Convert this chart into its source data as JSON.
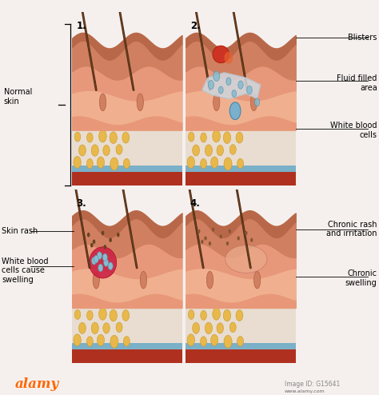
{
  "panel_labels": [
    "1.",
    "2.",
    "3.",
    "4."
  ],
  "bg_color": "#f5f0ee",
  "skin_surface_color": "#c8795a",
  "skin_outer_color": "#d4896e",
  "skin_mid_color": "#e8a080",
  "skin_dermis_color": "#f0b8a0",
  "skin_deep_color": "#e89880",
  "fat_color": "#e8b84b",
  "fat_edge_color": "#c89830",
  "vessel_color": "#cc3322",
  "blue_layer_color": "#7ab0c8",
  "deep_red_color": "#b03020",
  "hair_color": "#6b4020",
  "hair_dark": "#4a2810",
  "blister_red": "#cc2222",
  "blister_orange": "#e87830",
  "fluid_white": "#d0d8e0",
  "bubble_fill": "#88bbcc",
  "bubble_edge": "#5590aa",
  "wbc_fill": "#7ab0cc",
  "wbc_edge": "#4488aa",
  "rash_color": "#885530",
  "swelling_fill": "#cc2244",
  "swelling_edge": "#aa0022",
  "chronic_rash_color": "#aa6633",
  "chronic_swell_fill": "#e8a090",
  "footer_bg": "#1a1a1a",
  "alamy_color": "#ff6600",
  "white": "#ffffff",
  "panel_border": "#cccccc"
}
